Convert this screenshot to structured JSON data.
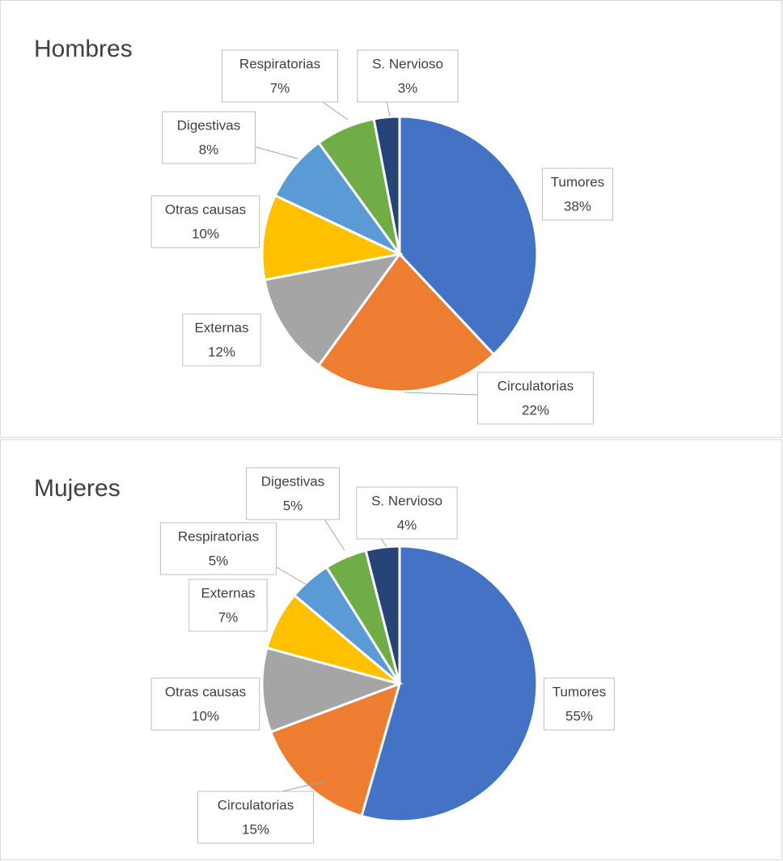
{
  "chart_data": [
    {
      "type": "pie",
      "title": "Hombres",
      "categories": [
        "Tumores",
        "Circulatorias",
        "Externas",
        "Otras causas",
        "Digestivas",
        "Respiratorias",
        "S. Nervioso"
      ],
      "values": [
        38,
        22,
        12,
        10,
        8,
        7,
        3
      ],
      "value_labels": [
        "38%",
        "22%",
        "12%",
        "10%",
        "8%",
        "7%",
        "3%"
      ],
      "colors": [
        "#4472c4",
        "#ed7d31",
        "#a5a5a5",
        "#ffc000",
        "#5b9bd5",
        "#70ad47",
        "#264478"
      ]
    },
    {
      "type": "pie",
      "title": "Mujeres",
      "categories": [
        "Tumores",
        "Circulatorias",
        "Otras causas",
        "Externas",
        "Respiratorias",
        "Digestivas",
        "S. Nervioso"
      ],
      "values": [
        55,
        15,
        10,
        7,
        5,
        5,
        4
      ],
      "value_labels": [
        "55%",
        "15%",
        "10%",
        "7%",
        "5%",
        "5%",
        "4%"
      ],
      "colors": [
        "#4472c4",
        "#ed7d31",
        "#a5a5a5",
        "#ffc000",
        "#5b9bd5",
        "#70ad47",
        "#264478"
      ]
    }
  ]
}
